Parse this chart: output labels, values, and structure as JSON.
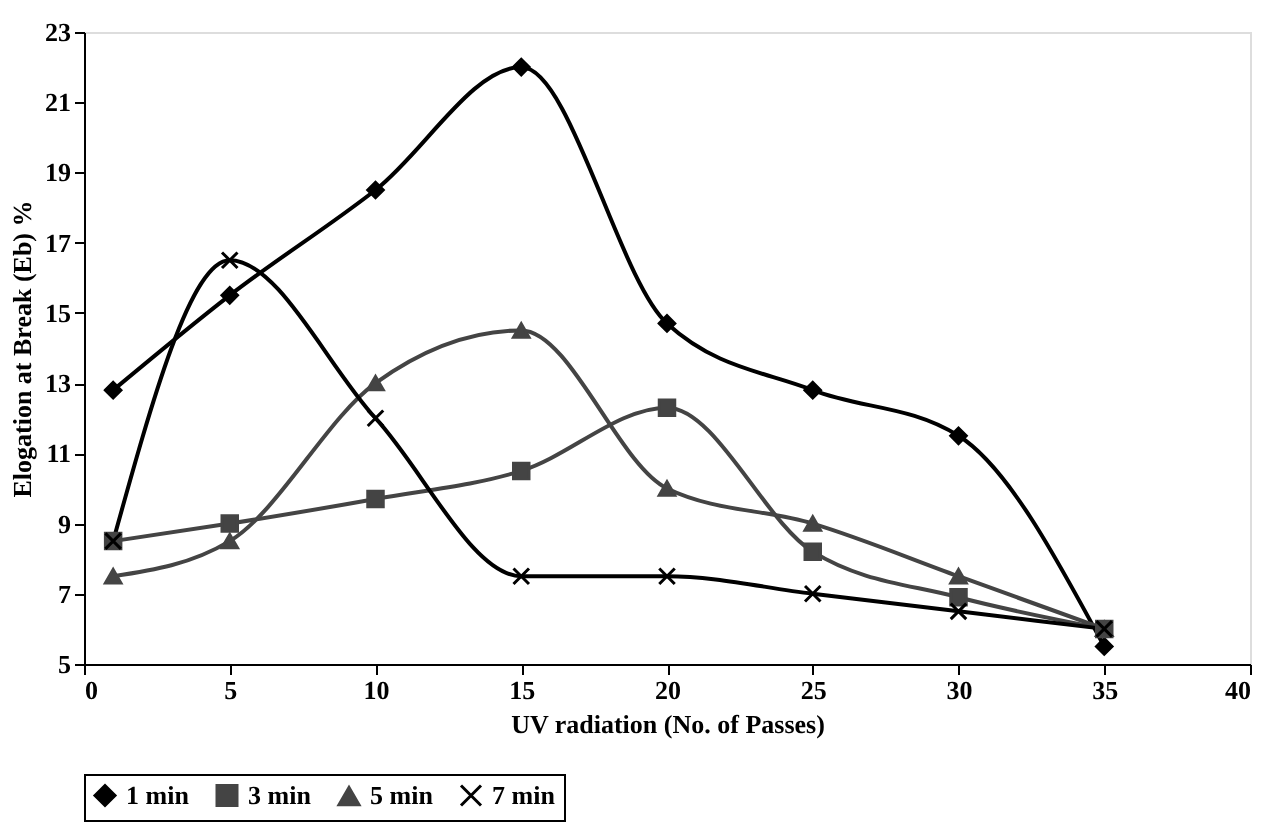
{
  "chart_data": {
    "type": "line",
    "xlabel": "UV radiation (No. of Passes)",
    "ylabel": "Elogation at Break (Eb) %",
    "x": [
      1,
      5,
      10,
      15,
      20,
      25,
      30,
      35
    ],
    "series": [
      {
        "name": "1 min",
        "color": "#000000",
        "marker": "diamond",
        "values": [
          12.8,
          15.5,
          18.5,
          22,
          14.7,
          12.8,
          11.5,
          5.5
        ]
      },
      {
        "name": "3 min",
        "color": "#444444",
        "marker": "square",
        "values": [
          8.5,
          9,
          9.7,
          10.5,
          12.3,
          8.2,
          6.9,
          6.0
        ]
      },
      {
        "name": "5 min",
        "color": "#444444",
        "marker": "triangle",
        "values": [
          7.5,
          8.5,
          13,
          14.5,
          10,
          9,
          7.5,
          6.0
        ]
      },
      {
        "name": "7 min",
        "color": "#000000",
        "marker": "cross",
        "values": [
          8.5,
          16.5,
          12,
          7.5,
          7.5,
          7,
          6.5,
          6.0
        ]
      }
    ],
    "xlim": [
      0,
      40
    ],
    "xticks": [
      0,
      5,
      10,
      15,
      20,
      25,
      30,
      35,
      40
    ],
    "ylim": [
      5,
      23
    ],
    "yticks": [
      5,
      7,
      9,
      11,
      13,
      15,
      17,
      19,
      21,
      23
    ],
    "grid": false,
    "legend": "bottom",
    "line_style": "solid"
  }
}
